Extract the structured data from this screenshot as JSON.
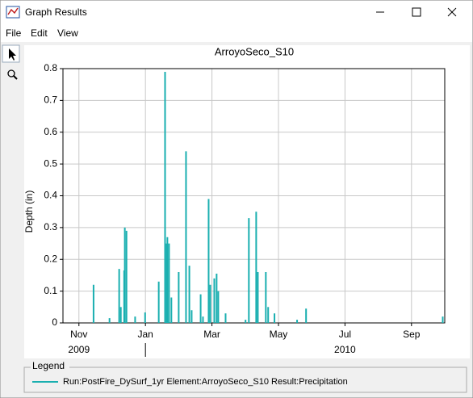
{
  "window": {
    "title": "Graph Results",
    "menu": [
      "File",
      "Edit",
      "View"
    ]
  },
  "chart_data": {
    "type": "bar",
    "title": "ArroyoSeco_S10",
    "ylabel": "Depth (in)",
    "legend_title": "Legend",
    "x": [
      1.44,
      1.92,
      2.21,
      2.26,
      2.36,
      2.38,
      2.43,
      2.69,
      2.99,
      3.4,
      3.59,
      3.64,
      3.66,
      3.71,
      3.78,
      4.0,
      4.22,
      4.32,
      4.39,
      4.66,
      4.73,
      4.9,
      4.95,
      5.07,
      5.14,
      5.19,
      5.41,
      6.01,
      6.11,
      6.33,
      6.38,
      6.62,
      6.69,
      6.88,
      7.56,
      7.83,
      11.94
    ],
    "series": [
      {
        "name": "Run:PostFire_DySurf_1yr  Element:ArroyoSeco_S10 Result:Precipitation",
        "color": "#1aafb0",
        "values": [
          0.12,
          0.015,
          0.17,
          0.05,
          0.165,
          0.3,
          0.29,
          0.02,
          0.033,
          0.13,
          0.79,
          0.25,
          0.27,
          0.25,
          0.08,
          0.16,
          0.54,
          0.18,
          0.04,
          0.09,
          0.02,
          0.39,
          0.12,
          0.14,
          0.155,
          0.1,
          0.03,
          0.01,
          0.33,
          0.35,
          0.16,
          0.16,
          0.05,
          0.03,
          0.01,
          0.045,
          0.02
        ]
      }
    ],
    "xlim": [
      0.52,
      12.0
    ],
    "xticks": [
      {
        "value": 1,
        "label": "Nov"
      },
      {
        "value": 3,
        "label": "Jan"
      },
      {
        "value": 5,
        "label": "Mar"
      },
      {
        "value": 7,
        "label": "May"
      },
      {
        "value": 9,
        "label": "Jul"
      },
      {
        "value": 11,
        "label": "Sep"
      }
    ],
    "x_year_labels": [
      {
        "value": 1,
        "label": "2009"
      },
      {
        "value": 9,
        "label": "2010"
      }
    ],
    "ylim": [
      0,
      0.8
    ],
    "yticks": [
      0.0,
      0.1,
      0.2,
      0.3,
      0.4,
      0.5,
      0.6,
      0.7,
      0.8
    ],
    "grid": true
  }
}
